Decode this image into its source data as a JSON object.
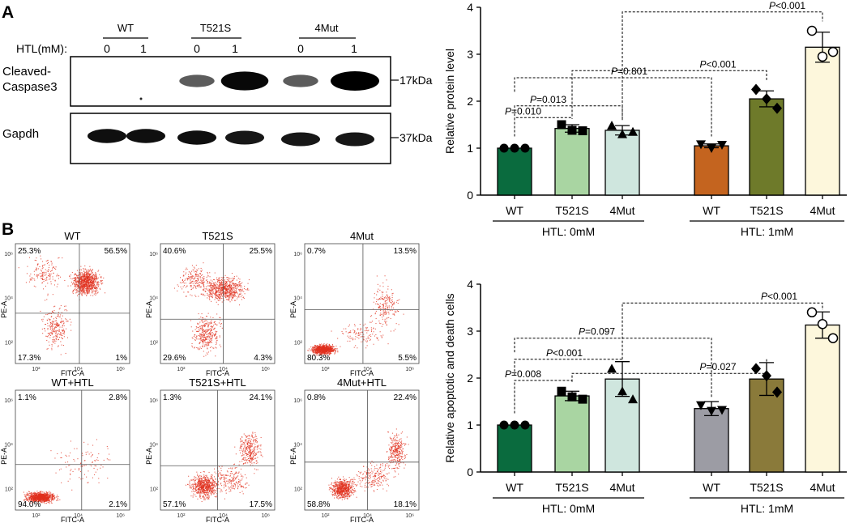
{
  "panel_a_label": "A",
  "panel_b_label": "B",
  "western_blot": {
    "group_labels": [
      "WT",
      "T521S",
      "4Mut"
    ],
    "htl_row_label": "HTL(mM):",
    "htl_values": [
      "0",
      "1",
      "0",
      "1",
      "0",
      "1"
    ],
    "protein_1_lines": [
      "Cleaved-",
      "Caspase3"
    ],
    "protein_2": "Gapdh",
    "marker_1": "17kDa",
    "marker_2": "37kDa",
    "band_intensity_caspase3": [
      0.0,
      0.0,
      0.45,
      0.95,
      0.45,
      1.0
    ],
    "band_intensity_gapdh": [
      0.9,
      0.9,
      0.9,
      0.85,
      0.85,
      0.85
    ]
  },
  "flow_cytometry": {
    "x_axis_label": "FITC-A",
    "y_axis_label": "PE-A",
    "x_ticks": [
      "10²",
      "10⁴",
      "10⁶"
    ],
    "y_ticks": [
      "10²",
      "10⁴",
      "10⁶"
    ],
    "plots": [
      {
        "title": "WT",
        "q_ul": "25.3%",
        "q_ur": "56.5%",
        "q_ll": "17.3%",
        "q_lr": "1%"
      },
      {
        "title": "T521S",
        "q_ul": "40.6%",
        "q_ur": "25.5%",
        "q_ll": "29.6%",
        "q_lr": "4.3%"
      },
      {
        "title": "4Mut",
        "q_ul": "0.7%",
        "q_ur": "13.5%",
        "q_ll": "80.3%",
        "q_lr": "5.5%"
      },
      {
        "title": "WT+HTL",
        "q_ul": "1.1%",
        "q_ur": "2.8%",
        "q_ll": "94.0%",
        "q_lr": "2.1%"
      },
      {
        "title": "T521S+HTL",
        "q_ul": "1.3%",
        "q_ur": "24.1%",
        "q_ll": "57.1%",
        "q_lr": "17.5%"
      },
      {
        "title": "4Mut+HTL",
        "q_ul": "0.8%",
        "q_ur": "22.4%",
        "q_ll": "58.8%",
        "q_lr": "18.1%"
      }
    ]
  },
  "chart_data": [
    {
      "type": "bar",
      "ylabel": "Relative protein level",
      "ylim": [
        0,
        4
      ],
      "yticks": [
        0,
        1,
        2,
        3,
        4
      ],
      "categories": [
        "WT",
        "T521S",
        "4Mut",
        "WT",
        "T521S",
        "4Mut"
      ],
      "group_labels": [
        "HTL: 0mM",
        "HTL: 1mM"
      ],
      "values": [
        1.0,
        1.42,
        1.38,
        1.05,
        2.05,
        3.15
      ],
      "errors": [
        0.0,
        0.08,
        0.1,
        0.04,
        0.17,
        0.32
      ],
      "points": [
        [
          1.0,
          1.0,
          1.0
        ],
        [
          1.5,
          1.38,
          1.37
        ],
        [
          1.48,
          1.3,
          1.35
        ],
        [
          1.08,
          1.0,
          1.07
        ],
        [
          2.25,
          2.05,
          1.85
        ],
        [
          3.5,
          2.95,
          3.05
        ]
      ],
      "markers": [
        "circle",
        "square",
        "triangle",
        "inverted-triangle",
        "diamond",
        "open-circle"
      ],
      "colors": [
        "#0a6b3e",
        "#a9d5a2",
        "#cfe6de",
        "#c4641f",
        "#6e7a2a",
        "#fdf7dc"
      ],
      "annotations": [
        "P=0.010",
        "P=0.013",
        "P=0.801",
        "P<0.001",
        "P<0.001"
      ]
    },
    {
      "type": "bar",
      "ylabel": "Relative apoptotic and death cells",
      "ylim": [
        0,
        4
      ],
      "yticks": [
        0,
        1,
        2,
        3,
        4
      ],
      "categories": [
        "WT",
        "T521S",
        "4Mut",
        "WT",
        "T521S",
        "4Mut"
      ],
      "group_labels": [
        "HTL: 0mM",
        "HTL: 1mM"
      ],
      "values": [
        1.0,
        1.62,
        1.98,
        1.35,
        1.98,
        3.13
      ],
      "errors": [
        0.0,
        0.1,
        0.37,
        0.15,
        0.35,
        0.28
      ],
      "points": [
        [
          1.0,
          1.0,
          1.0
        ],
        [
          1.72,
          1.6,
          1.55
        ],
        [
          2.2,
          1.72,
          1.55
        ],
        [
          1.42,
          1.3,
          1.32
        ],
        [
          2.2,
          2.05,
          1.7
        ],
        [
          3.4,
          3.15,
          2.85
        ]
      ],
      "markers": [
        "circle",
        "square",
        "triangle",
        "inverted-triangle",
        "diamond",
        "open-circle"
      ],
      "colors": [
        "#0a6b3e",
        "#a9d5a2",
        "#cfe6de",
        "#9c9ca4",
        "#8a7a3a",
        "#fdf7dc"
      ],
      "annotations": [
        "P=0.008",
        "P<0.001",
        "P=0.097",
        "P=0.027",
        "P<0.001"
      ]
    }
  ]
}
